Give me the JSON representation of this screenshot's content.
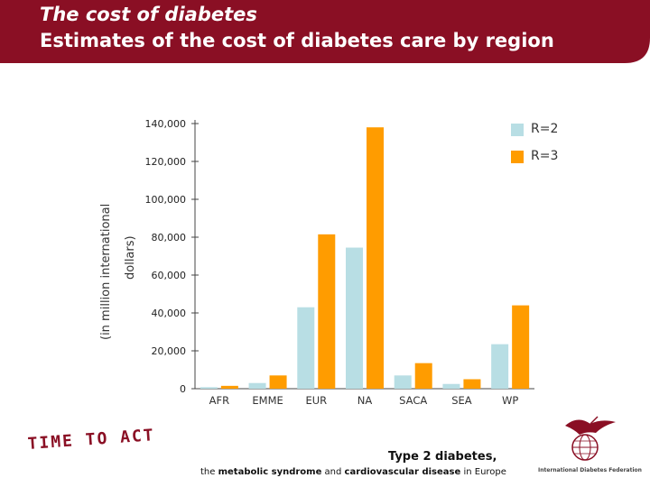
{
  "header": {
    "title": "The cost of diabetes",
    "subtitle": "Estimates of the cost of diabetes care by region"
  },
  "colors": {
    "banner": "#8a0f24",
    "r2": "#b8dee4",
    "r3": "#ff9c00",
    "axis": "#444444"
  },
  "chart_data": {
    "type": "bar",
    "ylabel_line1": "(in million international",
    "ylabel_line2": "dollars)",
    "ylim": [
      0,
      140000
    ],
    "yticks": [
      0,
      20000,
      40000,
      60000,
      80000,
      100000,
      120000,
      140000
    ],
    "ytick_labels": [
      "0",
      "20,000",
      "40,000",
      "60,000",
      "80,000",
      "100,000",
      "120,000",
      "140,000"
    ],
    "categories": [
      "AFR",
      "EMME",
      "EUR",
      "NA",
      "SACA",
      "SEA",
      "WP"
    ],
    "legend_position": "top-right",
    "grid": false,
    "series": [
      {
        "name": "R=2",
        "values": [
          800,
          3000,
          43000,
          74500,
          7000,
          2500,
          23500
        ]
      },
      {
        "name": "R=3",
        "values": [
          1500,
          7000,
          81500,
          138000,
          13500,
          5000,
          44000
        ]
      }
    ]
  },
  "footer": {
    "slogan": "TIME TO ACT",
    "book_title": "Type 2 diabetes,",
    "subtitle_parts": [
      "the ",
      "metabolic syndrome",
      " and ",
      "cardiovascular disease",
      " in Europe"
    ],
    "logo_text": "International Diabetes Federation"
  }
}
